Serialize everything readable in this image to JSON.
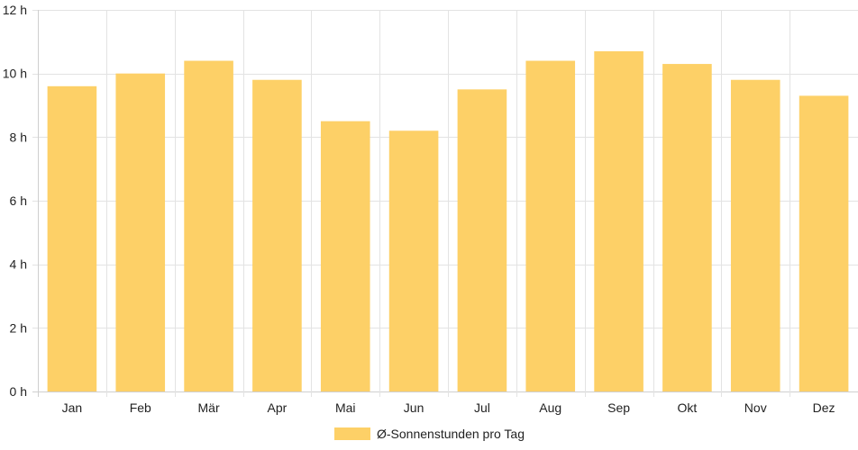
{
  "chart_data": {
    "type": "bar",
    "categories": [
      "Jan",
      "Feb",
      "Mär",
      "Apr",
      "Mai",
      "Jun",
      "Jul",
      "Aug",
      "Sep",
      "Okt",
      "Nov",
      "Dez"
    ],
    "series": [
      {
        "name": "Ø-Sonnenstunden pro Tag",
        "values": [
          9.6,
          10.0,
          10.4,
          9.8,
          8.5,
          8.2,
          9.5,
          10.4,
          10.7,
          10.3,
          9.8,
          9.3
        ],
        "color": "#fdd067"
      }
    ],
    "yticks": [
      "0 h",
      "2 h",
      "4 h",
      "6 h",
      "8 h",
      "10 h",
      "12 h"
    ],
    "ylim": [
      0,
      12
    ],
    "grid": true,
    "legend_position": "bottom"
  }
}
